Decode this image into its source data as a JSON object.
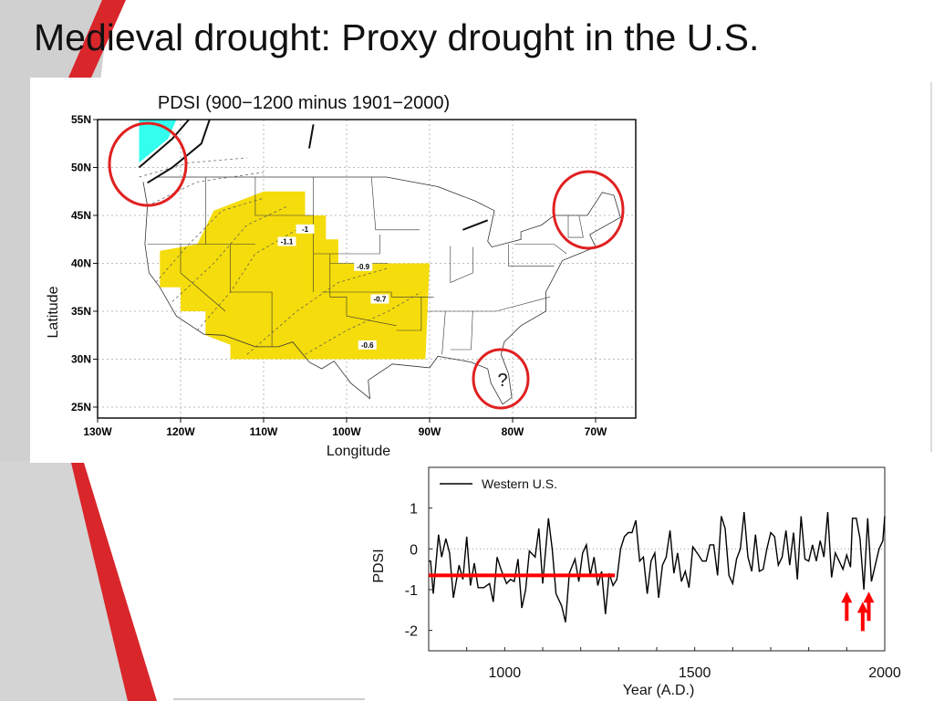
{
  "slide": {
    "title": "Medieval drought: Proxy drought in the U.S.",
    "colors": {
      "accent_red": "#d9262b",
      "side_gray": "#d0d0d0"
    }
  },
  "map": {
    "title": "PDSI (900−1200 minus 1901−2000)",
    "xlabel": "Longitude",
    "ylabel": "Latitude",
    "lon_ticks": [
      "130W",
      "120W",
      "110W",
      "100W",
      "90W",
      "80W",
      "70W"
    ],
    "lat_ticks": [
      "55N",
      "50N",
      "45N",
      "40N",
      "35N",
      "30N",
      "25N"
    ],
    "contour_labels": [
      "-1",
      "-1.1",
      "-0.9",
      "-0.7",
      "-0.6"
    ],
    "question_mark": "?",
    "colors": {
      "drought_fill": "#f5dc0c",
      "wet_fill": "#33ffee",
      "highlight_circle": "#e02020"
    }
  },
  "chart_data": {
    "type": "line",
    "xlabel": "Year (A.D.)",
    "ylabel": "PDSI",
    "xlim": [
      800,
      2000
    ],
    "ylim": [
      -2.5,
      2
    ],
    "x_ticks": [
      1000,
      1500,
      2000
    ],
    "y_ticks": [
      1,
      0,
      -1,
      -2
    ],
    "zero_line": "dotted",
    "legend": {
      "position": "top-left",
      "entries": [
        "Western U.S."
      ]
    },
    "series": [
      {
        "name": "Western U.S.",
        "color": "#000000",
        "x": [
          800,
          805,
          812,
          826,
          834,
          845,
          855,
          865,
          880,
          890,
          900,
          910,
          920,
          930,
          945,
          960,
          970,
          980,
          990,
          1005,
          1015,
          1025,
          1035,
          1045,
          1055,
          1065,
          1080,
          1090,
          1100,
          1115,
          1125,
          1135,
          1150,
          1160,
          1170,
          1185,
          1195,
          1205,
          1215,
          1225,
          1235,
          1245,
          1255,
          1265,
          1275,
          1285,
          1295,
          1305,
          1315,
          1325,
          1335,
          1345,
          1355,
          1365,
          1375,
          1385,
          1395,
          1405,
          1415,
          1425,
          1435,
          1445,
          1455,
          1465,
          1475,
          1485,
          1495,
          1510,
          1520,
          1530,
          1540,
          1550,
          1560,
          1570,
          1580,
          1590,
          1600,
          1610,
          1620,
          1630,
          1640,
          1650,
          1660,
          1670,
          1680,
          1690,
          1700,
          1710,
          1720,
          1730,
          1740,
          1750,
          1760,
          1770,
          1780,
          1790,
          1800,
          1810,
          1820,
          1830,
          1840,
          1850,
          1860,
          1870,
          1880,
          1890,
          1900,
          1910,
          1915,
          1925,
          1935,
          1945,
          1955,
          1965,
          1975,
          1985,
          1995,
          2000
        ],
        "y": [
          -0.3,
          -0.3,
          -1.1,
          0.35,
          -0.2,
          0.25,
          -0.1,
          -1.2,
          -0.4,
          -0.75,
          0.3,
          -0.9,
          -0.35,
          -0.95,
          -0.95,
          -0.85,
          -1.3,
          -0.2,
          -0.5,
          -0.85,
          -0.75,
          -0.8,
          -0.25,
          -1.45,
          -1.0,
          -0.05,
          -0.2,
          0.5,
          -0.85,
          0.75,
          0.0,
          -1.1,
          -1.4,
          -1.8,
          -0.6,
          -0.25,
          -0.8,
          -0.1,
          0.1,
          -0.65,
          -0.2,
          -0.9,
          -0.55,
          -1.6,
          -0.6,
          -0.9,
          -0.75,
          0.0,
          0.3,
          0.4,
          0.4,
          0.7,
          -0.3,
          -0.2,
          -1.1,
          -0.3,
          -0.1,
          -1.2,
          -0.4,
          -0.2,
          0.45,
          -0.6,
          -0.1,
          -0.8,
          -0.55,
          -0.95,
          0.05,
          -0.15,
          -0.3,
          -0.3,
          0.1,
          0.1,
          -0.65,
          0.8,
          0.5,
          -0.65,
          -0.85,
          -0.25,
          0.0,
          0.9,
          -0.2,
          -0.55,
          0.35,
          -0.55,
          -0.5,
          0.0,
          0.4,
          0.3,
          -0.4,
          -0.2,
          0.45,
          -0.4,
          0.4,
          -0.75,
          0.8,
          -0.25,
          -0.3,
          0.1,
          -0.3,
          0.2,
          -0.2,
          0.9,
          -0.7,
          -0.1,
          -0.3,
          -0.5,
          -0.15,
          -0.45,
          0.75,
          0.75,
          0.25,
          -1.0,
          0.75,
          -0.8,
          -0.4,
          0.0,
          0.2,
          0.8
        ]
      }
    ],
    "annotations": {
      "mean_line": {
        "value": -0.65,
        "from": 800,
        "to": 1290,
        "color": "#ff0000"
      },
      "arrows": [
        {
          "year": 1900,
          "tip": -1.05
        },
        {
          "year": 1942,
          "tip": -1.3
        },
        {
          "year": 1958,
          "tip": -1.05
        }
      ]
    }
  }
}
